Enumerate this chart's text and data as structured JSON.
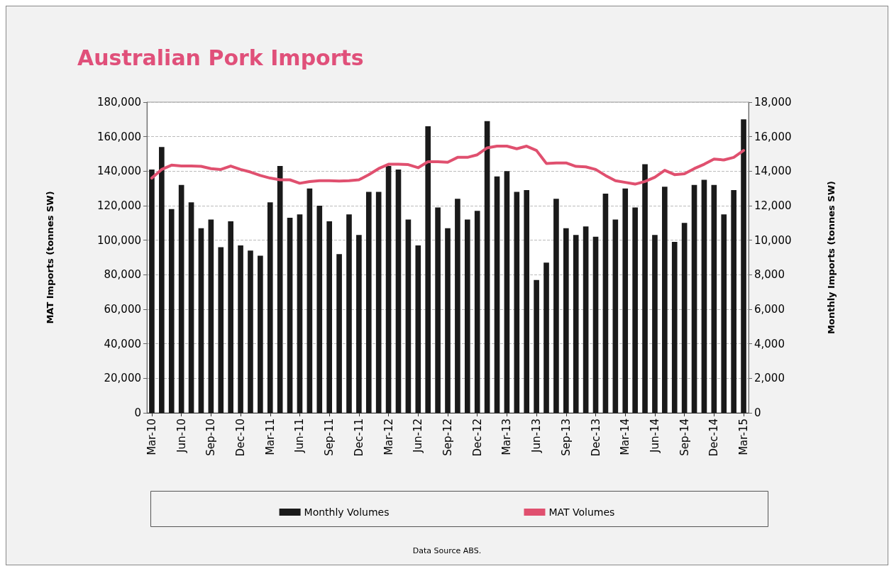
{
  "chart_data": {
    "type": "bar",
    "title": "Australian Pork Imports",
    "ylabel": "MAT Imports (tonnes SW)",
    "y2label": "Monthly Imports (tonnes SW)",
    "categories": [
      "Mar-10",
      null,
      null,
      "Jun-10",
      null,
      null,
      "Sep-10",
      null,
      null,
      "Dec-10",
      null,
      null,
      "Mar-11",
      null,
      null,
      "Jun-11",
      null,
      null,
      "Sep-11",
      null,
      null,
      "Dec-11",
      null,
      null,
      "Mar-12",
      null,
      null,
      "Jun-12",
      null,
      null,
      "Sep-12",
      null,
      null,
      "Dec-12",
      null,
      null,
      "Mar-13",
      null,
      null,
      "Jun-13",
      null,
      null,
      "Sep-13",
      null,
      null,
      "Dec-13",
      null,
      null,
      "Mar-14",
      null,
      null,
      "Jun-14",
      null,
      null,
      "Sep-14",
      null,
      null,
      "Dec-14",
      null,
      null,
      "Mar-15"
    ],
    "series": [
      {
        "name": "Monthly Volumes",
        "axis": "y2",
        "color": "#1a1a1a",
        "values": [
          14100,
          15400,
          11800,
          13200,
          12200,
          10700,
          11200,
          9600,
          11100,
          9700,
          9400,
          9100,
          12200,
          14300,
          11300,
          11500,
          13000,
          12000,
          11100,
          9200,
          11500,
          10300,
          12800,
          12800,
          14300,
          14100,
          11200,
          9700,
          16600,
          11900,
          10700,
          12400,
          11200,
          11700,
          16900,
          13700,
          14000,
          12800,
          12900,
          7700,
          8700,
          12400,
          10700,
          10300,
          10800,
          10200,
          12700,
          11200,
          13000,
          11900,
          14400,
          10300,
          13100,
          9900,
          11000,
          13200,
          13500,
          13200,
          11500,
          12900,
          17000
        ]
      },
      {
        "name": "MAT Volumes",
        "type": "line",
        "axis": "y",
        "color": "#e0506f",
        "values": [
          136000,
          141000,
          143500,
          143000,
          143000,
          142800,
          141500,
          141000,
          143000,
          141000,
          139500,
          137500,
          136000,
          135000,
          135000,
          133000,
          134000,
          134500,
          134500,
          134300,
          134500,
          135000,
          138000,
          141500,
          144000,
          144000,
          143800,
          142000,
          145500,
          145500,
          145200,
          148000,
          148000,
          149500,
          153500,
          154500,
          154500,
          153000,
          154500,
          152000,
          144500,
          144800,
          144800,
          142800,
          142500,
          141000,
          137500,
          134500,
          133500,
          132500,
          134000,
          136500,
          140500,
          138000,
          138500,
          141500,
          144000,
          147000,
          146500,
          148000,
          152000
        ]
      }
    ],
    "ylim": [
      0,
      180000
    ],
    "yticks": [
      {
        "value": 0,
        "label": "0"
      },
      {
        "value": 20000,
        "label": "20,000"
      },
      {
        "value": 40000,
        "label": "40,000"
      },
      {
        "value": 60000,
        "label": "60,000"
      },
      {
        "value": 80000,
        "label": "80,000"
      },
      {
        "value": 100000,
        "label": "100,000"
      },
      {
        "value": 120000,
        "label": "120,000"
      },
      {
        "value": 140000,
        "label": "140,000"
      },
      {
        "value": 160000,
        "label": "160,000"
      },
      {
        "value": 180000,
        "label": "180,000"
      }
    ],
    "y2lim": [
      0,
      18000
    ],
    "y2ticks": [
      {
        "value": 0,
        "label": "0"
      },
      {
        "value": 2000,
        "label": "2,000"
      },
      {
        "value": 4000,
        "label": "4,000"
      },
      {
        "value": 6000,
        "label": "6,000"
      },
      {
        "value": 8000,
        "label": "8,000"
      },
      {
        "value": 10000,
        "label": "10,000"
      },
      {
        "value": 12000,
        "label": "12,000"
      },
      {
        "value": 14000,
        "label": "14,000"
      },
      {
        "value": 16000,
        "label": "16,000"
      },
      {
        "value": 18000,
        "label": "18,000"
      }
    ],
    "grid": "y",
    "legend": "bottom",
    "marker": "none",
    "line_style": "solid",
    "annotations": [
      "Data Source ABS."
    ]
  }
}
